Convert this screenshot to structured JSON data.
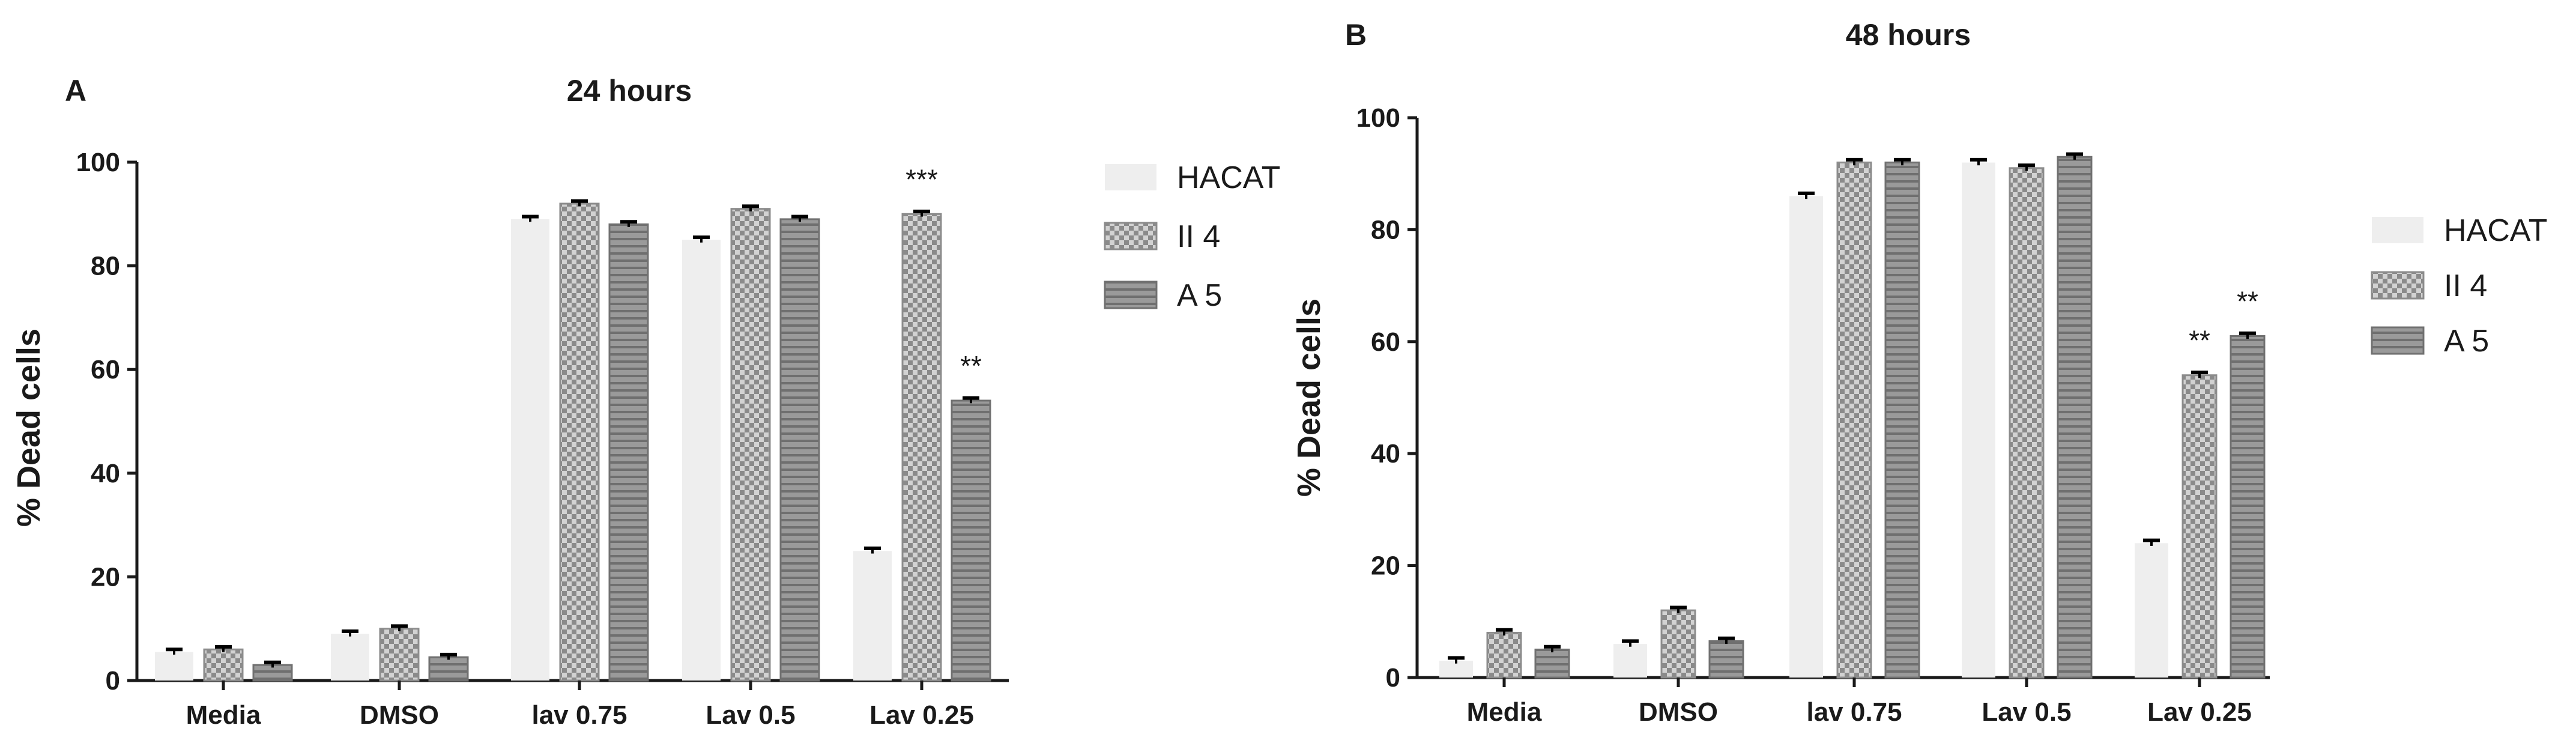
{
  "chart_data": [
    {
      "type": "bar",
      "panel_label": "A",
      "title": "24 hours",
      "ylabel": "% Dead cells",
      "xlabel": "",
      "ylim": [
        0,
        100
      ],
      "yticks": [
        "0",
        "20",
        "40",
        "60",
        "80",
        "100"
      ],
      "categories": [
        "Media",
        "DMSO",
        "lav 0.75",
        "Lav 0.5",
        "Lav 0.25"
      ],
      "series": [
        {
          "name": "HACAT",
          "values": [
            5.5,
            9,
            89,
            85,
            25
          ],
          "errors": [
            0.5,
            0.5,
            0.5,
            0.5,
            0.5
          ]
        },
        {
          "name": "II 4",
          "values": [
            6,
            10,
            92,
            91,
            90
          ],
          "errors": [
            0.5,
            0.5,
            0.5,
            0.5,
            0.5
          ]
        },
        {
          "name": "A 5",
          "values": [
            3,
            4.5,
            88,
            89,
            54
          ],
          "errors": [
            0.5,
            0.5,
            0.5,
            0.5,
            0.5
          ]
        }
      ],
      "annotations": [
        {
          "category": "Lav 0.25",
          "series": "II 4",
          "text": "***"
        },
        {
          "category": "Lav 0.25",
          "series": "A 5",
          "text": "**"
        }
      ],
      "legend_position": "right",
      "grid": false
    },
    {
      "type": "bar",
      "panel_label": "B",
      "title": "48 hours",
      "ylabel": "% Dead cells",
      "xlabel": "",
      "ylim": [
        0,
        100
      ],
      "yticks": [
        "0",
        "20",
        "40",
        "60",
        "80",
        "100"
      ],
      "categories": [
        "Media",
        "DMSO",
        "lav 0.75",
        "Lav 0.5",
        "Lav 0.25"
      ],
      "series": [
        {
          "name": "HACAT",
          "values": [
            3,
            6,
            86,
            92,
            24
          ],
          "errors": [
            0.5,
            0.5,
            0.5,
            0.5,
            0.5
          ]
        },
        {
          "name": "II 4",
          "values": [
            8,
            12,
            92,
            91,
            54
          ],
          "errors": [
            0.5,
            0.5,
            0.5,
            0.5,
            0.5
          ]
        },
        {
          "name": "A 5",
          "values": [
            5,
            6.5,
            92,
            93,
            61
          ],
          "errors": [
            0.5,
            0.5,
            0.5,
            0.5,
            0.5
          ]
        }
      ],
      "annotations": [
        {
          "category": "Lav 0.25",
          "series": "II 4",
          "text": "**"
        },
        {
          "category": "Lav 0.25",
          "series": "A 5",
          "text": "**"
        }
      ],
      "legend_position": "right",
      "grid": false
    }
  ],
  "colors": {
    "HACAT": "#eeeeee",
    "II 4": "#a9a9a9",
    "A 5": "#8e8e8e",
    "axis": "#1a1a1a",
    "errorbar": "#000000"
  }
}
